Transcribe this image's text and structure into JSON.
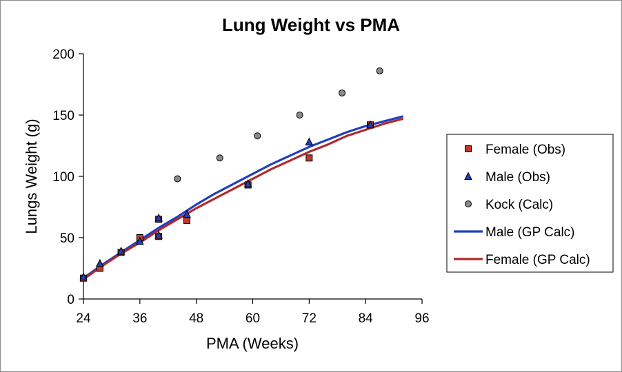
{
  "chart_data": {
    "type": "scatter",
    "title": "Lung Weight vs PMA",
    "xlabel": "PMA (Weeks)",
    "ylabel": "Lungs Weight (g)",
    "xlim": [
      24,
      96
    ],
    "ylim": [
      0,
      200
    ],
    "xticks": [
      24,
      36,
      48,
      60,
      72,
      84,
      96
    ],
    "yticks": [
      0,
      50,
      100,
      150,
      200
    ],
    "legend_position": "right",
    "series": [
      {
        "name": "Female (Obs)",
        "kind": "points",
        "marker": "square",
        "color": "#c0392b",
        "x": [
          24,
          27.5,
          32,
          36,
          40,
          40,
          46,
          59,
          72,
          85
        ],
        "y": [
          17,
          25,
          38,
          50,
          51,
          65,
          64,
          93,
          115,
          142
        ]
      },
      {
        "name": "Male (Obs)",
        "kind": "points",
        "marker": "triangle",
        "color": "#1f3fb5",
        "x": [
          24,
          27.5,
          32,
          36,
          40,
          40,
          46,
          59,
          72,
          85
        ],
        "y": [
          18,
          29,
          39,
          47,
          52,
          66,
          69,
          94,
          128,
          142
        ]
      },
      {
        "name": "Kock (Calc)",
        "kind": "points",
        "marker": "circle",
        "color": "#8a8a8a",
        "x": [
          44,
          53,
          61,
          70,
          79,
          87
        ],
        "y": [
          98,
          115,
          133,
          150,
          168,
          186
        ]
      },
      {
        "name": "Male (GP Calc)",
        "kind": "line",
        "color": "#1f3fc0",
        "x": [
          24,
          28,
          32,
          36,
          40,
          44,
          48,
          52,
          56,
          60,
          64,
          68,
          72,
          76,
          80,
          84,
          88,
          92
        ],
        "y": [
          17,
          28,
          38,
          48,
          58,
          67,
          77,
          86,
          94,
          102,
          110,
          117,
          124,
          130,
          136,
          141,
          145,
          149
        ]
      },
      {
        "name": "Female (GP Calc)",
        "kind": "line",
        "color": "#b02a2a",
        "x": [
          24,
          28,
          32,
          36,
          40,
          44,
          48,
          52,
          56,
          60,
          64,
          68,
          72,
          76,
          80,
          84,
          88,
          92
        ],
        "y": [
          16,
          27,
          37,
          46,
          56,
          65,
          74,
          82,
          90,
          98,
          106,
          113,
          120,
          126,
          133,
          138,
          143,
          147
        ]
      }
    ]
  }
}
